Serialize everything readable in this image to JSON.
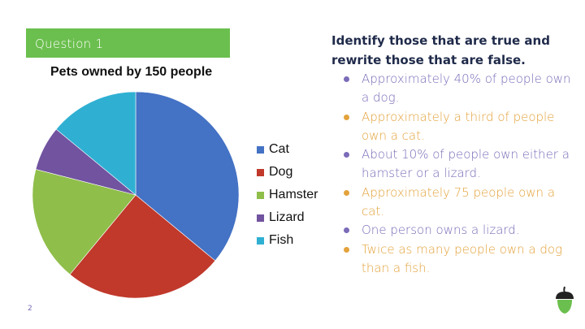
{
  "slide": {
    "banner_label": "Question 1",
    "page_number": "2"
  },
  "chart_data": {
    "type": "pie",
    "title": "Pets owned by 150 people",
    "legend_position": "right",
    "categories": [
      "Cat",
      "Dog",
      "Hamster",
      "Lizard",
      "Fish"
    ],
    "values": [
      36,
      25,
      18,
      7,
      14
    ],
    "colors": [
      "#4472c4",
      "#c0392b",
      "#8fbe4a",
      "#7153a0",
      "#2fb0d3"
    ]
  },
  "instructions": {
    "heading": "Identify those that are true and rewrite those that are false.",
    "statements": [
      {
        "text": "Approximately 40% of people own a dog.",
        "color": "#7b6bb8"
      },
      {
        "text": "Approximately a third of people own a cat.",
        "color": "#e3a23b"
      },
      {
        "text": "About 10% of people own either a hamster or a lizard.",
        "color": "#7b6bb8"
      },
      {
        "text": "Approximately 75 people own a cat.",
        "color": "#e3a23b"
      },
      {
        "text": "One person owns a lizard.",
        "color": "#7b6bb8"
      },
      {
        "text": "Twice as many people own a dog than a fish.",
        "color": "#e3a23b"
      }
    ]
  },
  "logo": {
    "icon": "acorn-icon"
  }
}
